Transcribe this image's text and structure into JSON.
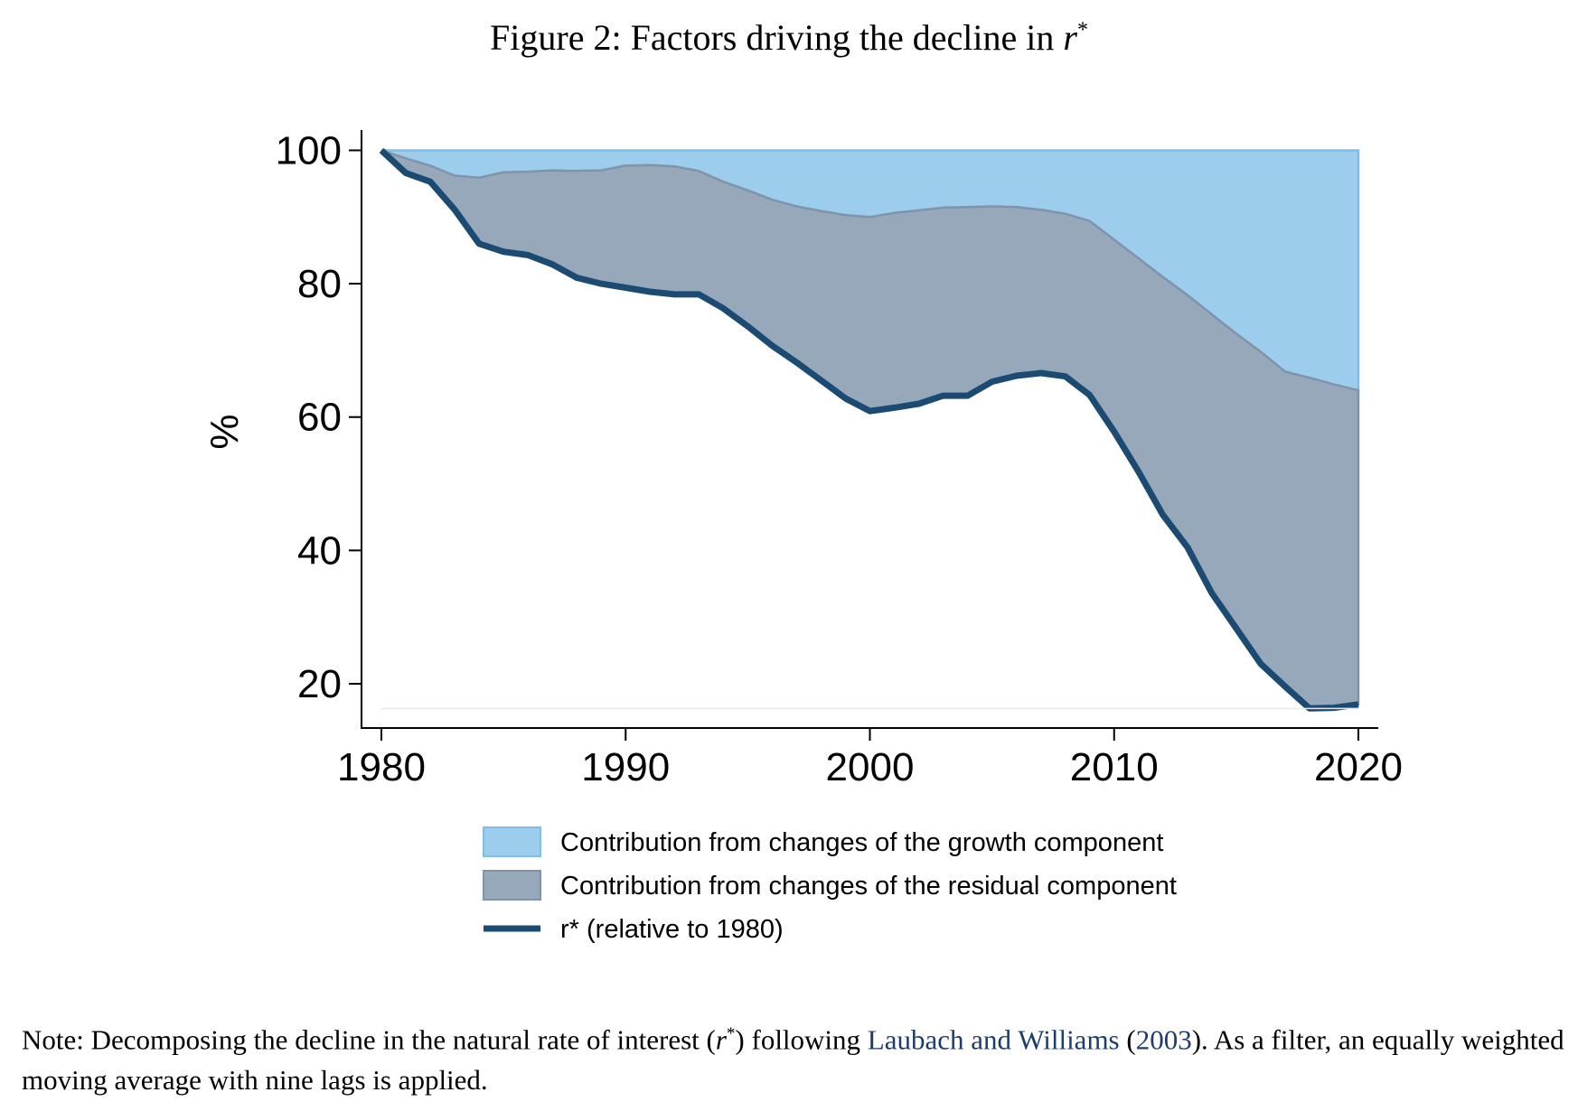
{
  "figure": {
    "title_prefix": "Figure 2: Factors driving the decline in",
    "title_symbol": "r",
    "title_sup": "*"
  },
  "note": {
    "prefix": "Note: Decomposing the decline in the natural rate of interest (",
    "symbol": "r",
    "sup": "*",
    "mid": ") following ",
    "cite_authors": "Laubach and Williams",
    "cite_open": " (",
    "cite_year": "2003",
    "cite_close": ").",
    "rest": " As a filter, an equally weighted moving average with nine lags is applied."
  },
  "colors": {
    "growth": "#9dcded",
    "growth_edge": "#7fbde6",
    "residual": "#96a8ba",
    "residual_edge": "#7f94ab",
    "rstar": "#1b4a73"
  },
  "chart_data": {
    "type": "area",
    "xlabel": "",
    "ylabel": "%",
    "xlim": [
      1980,
      2020
    ],
    "ylim": [
      13.5,
      102.5
    ],
    "x_ticks": [
      1980,
      1990,
      2000,
      2010,
      2020
    ],
    "y_ticks": [
      20,
      40,
      60,
      80,
      100
    ],
    "x": [
      1980,
      1981,
      1982,
      1983,
      1984,
      1985,
      1986,
      1987,
      1988,
      1989,
      1990,
      1991,
      1992,
      1993,
      1994,
      1995,
      1996,
      1997,
      1998,
      1999,
      2000,
      2001,
      2002,
      2003,
      2004,
      2005,
      2006,
      2007,
      2008,
      2009,
      2010,
      2011,
      2012,
      2013,
      2014,
      2015,
      2016,
      2017,
      2018,
      2019,
      2020
    ],
    "legend_position": "bottom",
    "series": [
      {
        "name": "Contribution from changes of the growth component",
        "kind": "area",
        "values": [
          100,
          100,
          100,
          100,
          100,
          100,
          100,
          100,
          100,
          100,
          100,
          100,
          100,
          100,
          100,
          100,
          100,
          100,
          100,
          100,
          100,
          100,
          100,
          100,
          100,
          100,
          100,
          100,
          100,
          100,
          100,
          100,
          100,
          100,
          100,
          100,
          100,
          100,
          100,
          100,
          100
        ]
      },
      {
        "name": "Contribution from changes of the residual component",
        "kind": "area",
        "values": [
          100,
          98.8,
          97.7,
          96.2,
          95.9,
          96.7,
          96.8,
          97.0,
          96.9,
          97.0,
          97.7,
          97.8,
          97.6,
          96.9,
          95.3,
          94.0,
          92.6,
          91.6,
          90.9,
          90.3,
          90.0,
          90.6,
          91.0,
          91.4,
          91.5,
          91.6,
          91.5,
          91.1,
          90.5,
          89.4,
          86.6,
          83.8,
          81.0,
          78.3,
          75.4,
          72.5,
          69.8,
          66.8,
          65.9,
          64.9,
          64.0
        ]
      },
      {
        "name": "r* (relative to 1980)",
        "kind": "line",
        "values": [
          100,
          96.6,
          95.3,
          91.1,
          86.0,
          84.8,
          84.3,
          82.9,
          80.9,
          80.0,
          79.4,
          78.8,
          78.4,
          78.4,
          76.3,
          73.6,
          70.7,
          68.2,
          65.5,
          62.8,
          60.9,
          61.4,
          62.0,
          63.2,
          63.2,
          65.3,
          66.2,
          66.6,
          66.1,
          63.3,
          57.8,
          51.8,
          45.3,
          40.5,
          33.6,
          28.3,
          23.0,
          19.6,
          16.3,
          16.4,
          16.9
        ]
      }
    ]
  }
}
